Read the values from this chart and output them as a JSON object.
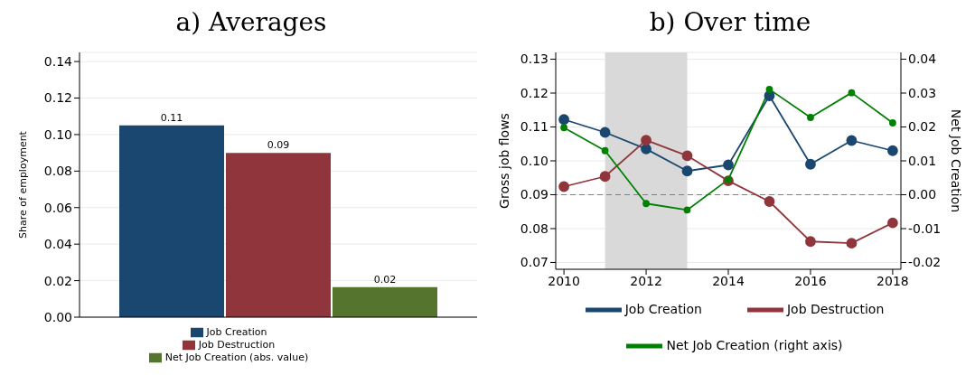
{
  "chart_data": [
    {
      "type": "bar",
      "title": "a) Averages",
      "ylabel": "Share of employment",
      "categories": [
        null
      ],
      "series": [
        {
          "name": "Job Creation",
          "color": "#1a476f",
          "values": [
            0.105
          ],
          "value_labels": [
            "0.11"
          ]
        },
        {
          "name": "Job Destruction",
          "color": "#90353b",
          "values": [
            0.09
          ],
          "value_labels": [
            "0.09"
          ]
        },
        {
          "name": "Net Job Creation (abs. value)",
          "color": "#55752f",
          "values": [
            0.0165
          ],
          "value_labels": [
            "0.02"
          ]
        }
      ],
      "ylim": [
        0,
        0.145
      ],
      "yticks": [
        {
          "value": 0,
          "label": "0.00"
        },
        {
          "value": 0.02,
          "label": "0.02"
        },
        {
          "value": 0.04,
          "label": "0.04"
        },
        {
          "value": 0.06,
          "label": "0.06"
        },
        {
          "value": 0.08,
          "label": "0.08"
        },
        {
          "value": 0.1,
          "label": "0.10"
        },
        {
          "value": 0.12,
          "label": "0.12"
        },
        {
          "value": 0.14,
          "label": "0.14"
        }
      ],
      "grid": "y",
      "legend": "bottom"
    },
    {
      "type": "line",
      "title": "b) Over time",
      "ylabel": "Gross job flows",
      "y2label": "Net Job Creation",
      "x": [
        2010,
        2011,
        2012,
        2013,
        2014,
        2015,
        2016,
        2017,
        2018
      ],
      "series": [
        {
          "name": "Job Creation",
          "color": "#1a476f",
          "values": [
            0.1122,
            0.1084,
            0.1035,
            0.097,
            0.0988,
            0.1192,
            0.099,
            0.106,
            0.103
          ]
        },
        {
          "name": "Job Destruction",
          "color": "#90353b",
          "values": [
            0.0924,
            0.0954,
            0.1061,
            0.1015,
            0.0941,
            0.088,
            0.0762,
            0.0757,
            0.0817
          ]
        },
        {
          "name": "Net Job Creation (right axis)",
          "color": "#008000",
          "axis": "y2",
          "values": [
            0.0198,
            0.013,
            -0.0026,
            -0.0045,
            0.0045,
            0.0311,
            0.0228,
            0.0301,
            0.0212
          ]
        }
      ],
      "xlim": [
        2009.8,
        2018.2
      ],
      "xticks": [
        2010,
        2012,
        2014,
        2016,
        2018
      ],
      "ylim": [
        0.068,
        0.132
      ],
      "yticks": [
        {
          "value": 0.07,
          "label": "0.07"
        },
        {
          "value": 0.08,
          "label": "0.08"
        },
        {
          "value": 0.09,
          "label": "0.09"
        },
        {
          "value": 0.1,
          "label": "0.10"
        },
        {
          "value": 0.11,
          "label": "0.11"
        },
        {
          "value": 0.12,
          "label": "0.12"
        },
        {
          "value": 0.13,
          "label": "0.13"
        }
      ],
      "y2lim": [
        -0.022,
        0.042
      ],
      "y2ticks": [
        {
          "value": -0.02,
          "label": "-0.02"
        },
        {
          "value": -0.01,
          "label": "-0.01"
        },
        {
          "value": 0,
          "label": "0.00"
        },
        {
          "value": 0.01,
          "label": "0.01"
        },
        {
          "value": 0.02,
          "label": "0.02"
        },
        {
          "value": 0.03,
          "label": "0.03"
        },
        {
          "value": 0.04,
          "label": "0.04"
        }
      ],
      "bands": [
        {
          "axis": "x",
          "from": 2011,
          "to": 2013,
          "color": "#d9d9d9"
        }
      ],
      "ref_lines": [
        {
          "axis": "y2",
          "value": 0,
          "color": "#808080",
          "line_style": "dashed"
        }
      ],
      "grid": "y",
      "legend": "bottom",
      "marker": "circle",
      "line_style": "solid"
    }
  ]
}
